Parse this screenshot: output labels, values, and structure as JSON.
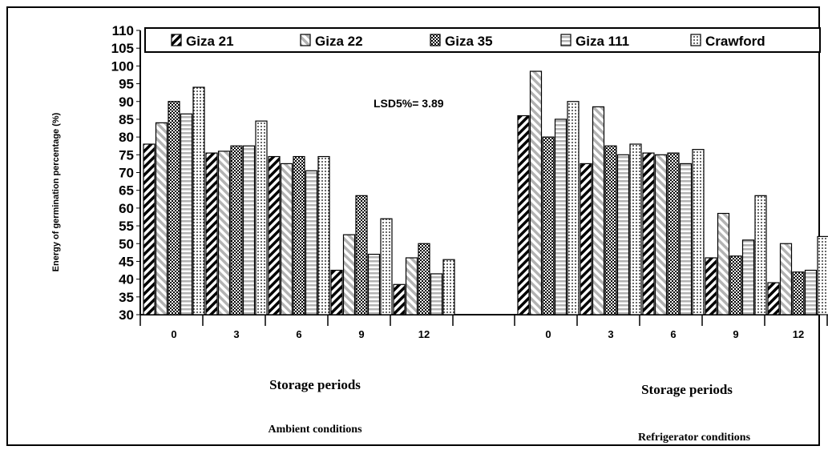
{
  "chart_data": {
    "type": "bar",
    "ylabel": "Energy of germination percentage (%)",
    "ylim": [
      30,
      110
    ],
    "yticks": [
      "110",
      "105",
      "100",
      "95",
      "90",
      "85",
      "80",
      "75",
      "70",
      "65",
      "60",
      "55",
      "50",
      "45",
      "40",
      "35",
      "30"
    ],
    "annotation": "LSD5%= 3.89",
    "legend_position": "top",
    "series": [
      {
        "name": "Giza 21",
        "pattern": "diagonal-black"
      },
      {
        "name": "Giza 22",
        "pattern": "diagonal-gray"
      },
      {
        "name": "Giza 35",
        "pattern": "checker-black"
      },
      {
        "name": "Giza 111",
        "pattern": "horizontal-gray"
      },
      {
        "name": "Crawford",
        "pattern": "dots-black"
      }
    ],
    "panels": [
      {
        "xlabel": "Storage periods",
        "condition": "Ambient conditions",
        "categories": [
          "0",
          "3",
          "6",
          "9",
          "12"
        ],
        "values": [
          [
            78,
            75.5,
            74.5,
            42.5,
            38.5
          ],
          [
            84,
            76,
            72.5,
            52.5,
            46
          ],
          [
            90,
            77.5,
            74.5,
            63.5,
            50
          ],
          [
            86.5,
            77.5,
            70.5,
            47,
            41.5
          ],
          [
            94,
            84.5,
            74.5,
            57,
            45.5
          ]
        ]
      },
      {
        "xlabel": "Storage periods",
        "condition": "Refrigerator conditions",
        "categories": [
          "0",
          "3",
          "6",
          "9",
          "12"
        ],
        "values": [
          [
            86,
            72.5,
            75.5,
            46,
            39
          ],
          [
            98.5,
            88.5,
            75,
            58.5,
            50
          ],
          [
            80,
            77.5,
            75.5,
            46.5,
            42
          ],
          [
            85,
            75,
            72.5,
            51,
            42.5
          ],
          [
            90,
            78,
            76.5,
            63.5,
            52
          ]
        ]
      }
    ]
  }
}
